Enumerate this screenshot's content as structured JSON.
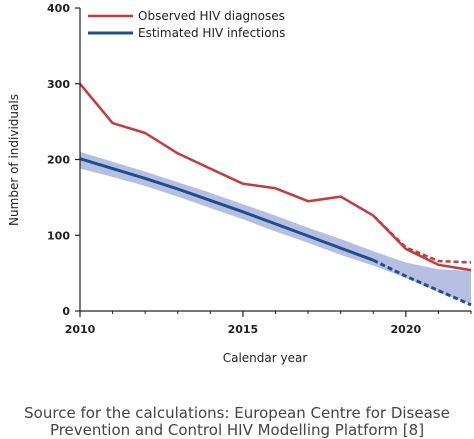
{
  "chart_data": {
    "type": "line",
    "xlabel": "Calendar year",
    "ylabel": "Number of individuals",
    "xlim": [
      2010,
      2022
    ],
    "ylim": [
      0,
      400
    ],
    "x_ticks": [
      2010,
      2015,
      2020
    ],
    "y_ticks": [
      0,
      100,
      200,
      300,
      400
    ],
    "legend_position": "top-left",
    "series": [
      {
        "name": "Observed HIV diagnoses",
        "color": "#c8393b",
        "x": [
          2010,
          2011,
          2012,
          2013,
          2014,
          2015,
          2016,
          2017,
          2018,
          2019,
          2020,
          2021,
          2022
        ],
        "values": [
          300,
          248,
          235,
          208,
          188,
          168,
          162,
          145,
          151,
          126,
          82,
          61,
          54
        ]
      },
      {
        "name": "Estimated HIV infections",
        "color": "#1f4e8c",
        "x": [
          2010,
          2011,
          2012,
          2013,
          2014,
          2015,
          2016,
          2017,
          2018,
          2019
        ],
        "values": [
          201,
          188,
          175,
          161,
          146,
          131,
          115,
          99,
          83,
          67
        ]
      }
    ],
    "projections": [
      {
        "of": "Observed HIV diagnoses",
        "style": "dashed",
        "color": "#c8393b",
        "x": [
          2019,
          2020,
          2021,
          2022
        ],
        "values": [
          126,
          84,
          66,
          64
        ]
      },
      {
        "of": "Estimated HIV infections",
        "style": "dashed",
        "color": "#1f4e8c",
        "x": [
          2019,
          2020,
          2021,
          2022
        ],
        "values": [
          67,
          46,
          27,
          8
        ]
      }
    ],
    "uncertainty_band": {
      "of": "Estimated HIV infections",
      "color": "#a8b4dc",
      "x": [
        2010,
        2011,
        2012,
        2013,
        2014,
        2015,
        2016,
        2017,
        2018,
        2019,
        2020,
        2021,
        2022
      ],
      "upper": [
        210,
        197,
        184,
        170,
        156,
        141,
        126,
        110,
        95,
        79,
        64,
        55,
        53
      ],
      "lower": [
        188,
        177,
        165,
        151,
        136,
        121,
        105,
        90,
        74,
        60,
        44,
        25,
        9
      ]
    }
  },
  "source_lines": [
    "Source for the calculations: European Centre for Disease",
    "Prevention and Control HIV Modelling Platform [8]"
  ]
}
